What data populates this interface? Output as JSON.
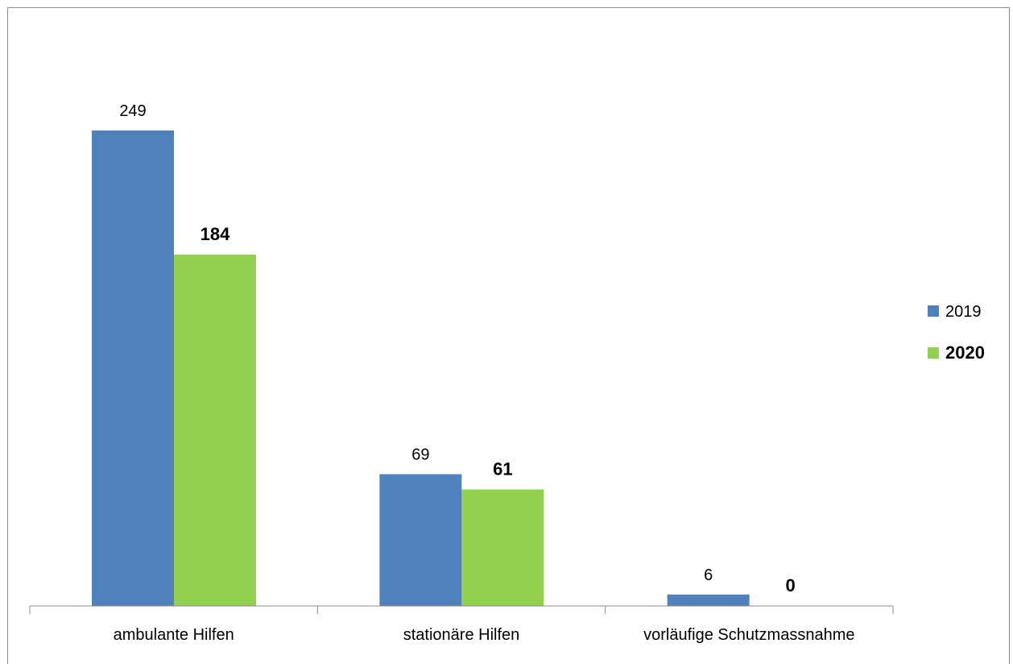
{
  "chart_data": {
    "type": "bar",
    "categories": [
      "ambulante Hilfen",
      "stationäre Hilfen",
      "vorläufige Schutzmassnahme"
    ],
    "series": [
      {
        "name": "2019",
        "values": [
          249,
          69,
          6
        ],
        "color": "#4f81bd",
        "bold": false
      },
      {
        "name": "2020",
        "values": [
          184,
          61,
          0
        ],
        "color": "#92d050",
        "bold": true
      }
    ],
    "ylim": [
      0,
      260
    ],
    "grid": false,
    "legend_position": "right",
    "title": "",
    "xlabel": "",
    "ylabel": ""
  }
}
